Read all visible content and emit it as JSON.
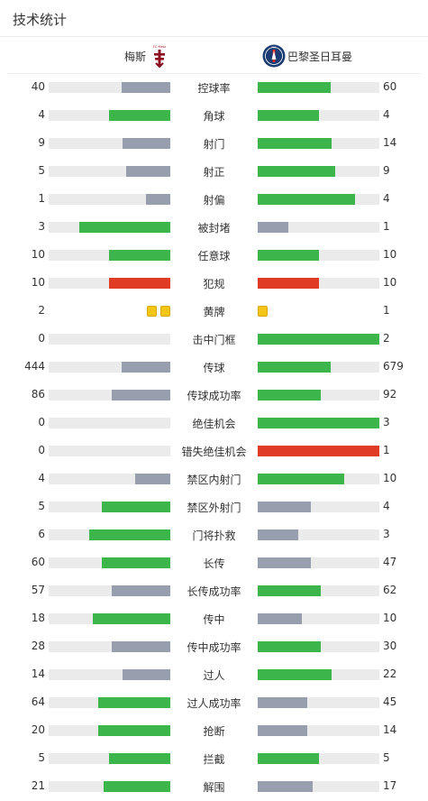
{
  "page": {
    "title": "技术统计"
  },
  "teams": {
    "home": {
      "name": "梅斯",
      "logo_text": "FC Metz"
    },
    "away": {
      "name": "巴黎圣日耳曼",
      "logo_text": "PSG"
    }
  },
  "colors": {
    "higher": "#3cb54a",
    "lower": "#979ead",
    "fouls": "#e03c25",
    "track": "#ebebeb",
    "yellow_card": "#f5c518"
  },
  "stats": [
    {
      "label": "控球率",
      "home": "40",
      "away": "60",
      "home_fill": 0.4,
      "away_fill": 0.6,
      "home_color": "lower",
      "away_color": "higher"
    },
    {
      "label": "角球",
      "home": "4",
      "away": "4",
      "home_fill": 0.5,
      "away_fill": 0.5,
      "home_color": "higher",
      "away_color": "higher"
    },
    {
      "label": "射门",
      "home": "9",
      "away": "14",
      "home_fill": 0.39,
      "away_fill": 0.61,
      "home_color": "lower",
      "away_color": "higher"
    },
    {
      "label": "射正",
      "home": "5",
      "away": "9",
      "home_fill": 0.36,
      "away_fill": 0.64,
      "home_color": "lower",
      "away_color": "higher"
    },
    {
      "label": "射偏",
      "home": "1",
      "away": "4",
      "home_fill": 0.2,
      "away_fill": 0.8,
      "home_color": "lower",
      "away_color": "higher"
    },
    {
      "label": "被封堵",
      "home": "3",
      "away": "1",
      "home_fill": 0.75,
      "away_fill": 0.25,
      "home_color": "higher",
      "away_color": "lower"
    },
    {
      "label": "任意球",
      "home": "10",
      "away": "10",
      "home_fill": 0.5,
      "away_fill": 0.5,
      "home_color": "higher",
      "away_color": "higher"
    },
    {
      "label": "犯规",
      "home": "10",
      "away": "10",
      "home_fill": 0.5,
      "away_fill": 0.5,
      "home_color": "fouls",
      "away_color": "fouls"
    },
    {
      "label": "黄牌",
      "home": "2",
      "away": "1",
      "cards": true,
      "home_cards": 2,
      "away_cards": 1
    },
    {
      "label": "击中门框",
      "home": "0",
      "away": "2",
      "home_fill": 0.0,
      "away_fill": 1.0,
      "home_color": "lower",
      "away_color": "higher"
    },
    {
      "label": "传球",
      "home": "444",
      "away": "679",
      "home_fill": 0.4,
      "away_fill": 0.6,
      "home_color": "lower",
      "away_color": "higher"
    },
    {
      "label": "传球成功率",
      "home": "86",
      "away": "92",
      "home_fill": 0.48,
      "away_fill": 0.52,
      "home_color": "lower",
      "away_color": "higher"
    },
    {
      "label": "绝佳机会",
      "home": "0",
      "away": "3",
      "home_fill": 0.0,
      "away_fill": 1.0,
      "home_color": "lower",
      "away_color": "higher"
    },
    {
      "label": "错失绝佳机会",
      "home": "0",
      "away": "1",
      "home_fill": 0.0,
      "away_fill": 1.0,
      "home_color": "lower",
      "away_color": "fouls"
    },
    {
      "label": "禁区内射门",
      "home": "4",
      "away": "10",
      "home_fill": 0.29,
      "away_fill": 0.71,
      "home_color": "lower",
      "away_color": "higher"
    },
    {
      "label": "禁区外射门",
      "home": "5",
      "away": "4",
      "home_fill": 0.56,
      "away_fill": 0.44,
      "home_color": "higher",
      "away_color": "lower"
    },
    {
      "label": "门将扑救",
      "home": "6",
      "away": "3",
      "home_fill": 0.67,
      "away_fill": 0.33,
      "home_color": "higher",
      "away_color": "lower"
    },
    {
      "label": "长传",
      "home": "60",
      "away": "47",
      "home_fill": 0.56,
      "away_fill": 0.44,
      "home_color": "higher",
      "away_color": "lower"
    },
    {
      "label": "长传成功率",
      "home": "57",
      "away": "62",
      "home_fill": 0.48,
      "away_fill": 0.52,
      "home_color": "lower",
      "away_color": "higher"
    },
    {
      "label": "传中",
      "home": "18",
      "away": "10",
      "home_fill": 0.64,
      "away_fill": 0.36,
      "home_color": "higher",
      "away_color": "lower"
    },
    {
      "label": "传中成功率",
      "home": "28",
      "away": "30",
      "home_fill": 0.48,
      "away_fill": 0.52,
      "home_color": "lower",
      "away_color": "higher"
    },
    {
      "label": "过人",
      "home": "14",
      "away": "22",
      "home_fill": 0.39,
      "away_fill": 0.61,
      "home_color": "lower",
      "away_color": "higher"
    },
    {
      "label": "过人成功率",
      "home": "64",
      "away": "45",
      "home_fill": 0.59,
      "away_fill": 0.41,
      "home_color": "higher",
      "away_color": "lower"
    },
    {
      "label": "抢断",
      "home": "20",
      "away": "14",
      "home_fill": 0.59,
      "away_fill": 0.41,
      "home_color": "higher",
      "away_color": "lower"
    },
    {
      "label": "拦截",
      "home": "5",
      "away": "5",
      "home_fill": 0.5,
      "away_fill": 0.5,
      "home_color": "higher",
      "away_color": "higher"
    },
    {
      "label": "解围",
      "home": "21",
      "away": "17",
      "home_fill": 0.55,
      "away_fill": 0.45,
      "home_color": "higher",
      "away_color": "lower"
    }
  ]
}
